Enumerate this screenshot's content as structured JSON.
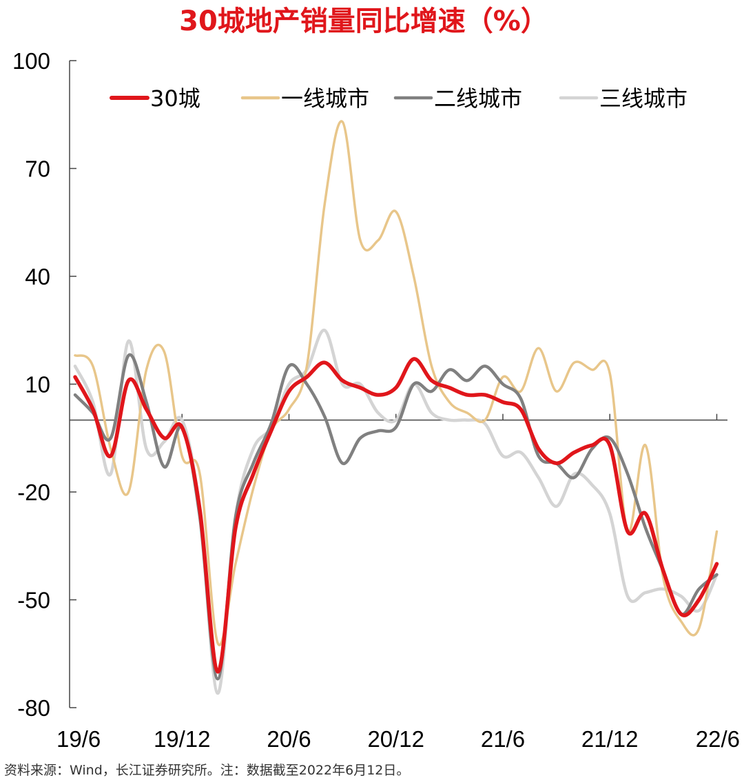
{
  "chart_data": {
    "type": "line",
    "title": "30城地产销量同比增速（%）",
    "source_note": "资料来源：Wind，长江证券研究所。注：数据截至2022年6月12日。",
    "ylim": [
      -80,
      100
    ],
    "yticks": [
      100,
      70,
      40,
      10,
      -20,
      -50,
      -80
    ],
    "x_tick_labels": [
      "19/6",
      "19/12",
      "20/6",
      "20/12",
      "21/6",
      "21/12",
      "22/6"
    ],
    "x_tick_positions": [
      0,
      6,
      12,
      18,
      24,
      30,
      36
    ],
    "xlim": [
      0,
      36.6
    ],
    "grid": false,
    "legend_position": "top",
    "series": [
      {
        "name": "30城",
        "color": "#e0161b",
        "width": 5.5,
        "points": [
          [
            0,
            12
          ],
          [
            1,
            3
          ],
          [
            2,
            -10
          ],
          [
            3,
            11
          ],
          [
            4,
            3
          ],
          [
            5,
            -5
          ],
          [
            6,
            -2
          ],
          [
            7,
            -25
          ],
          [
            8,
            -70
          ],
          [
            9,
            -30
          ],
          [
            10,
            -15
          ],
          [
            11,
            -3
          ],
          [
            12,
            8
          ],
          [
            13,
            12
          ],
          [
            14,
            16
          ],
          [
            15,
            11
          ],
          [
            16,
            9
          ],
          [
            17,
            7
          ],
          [
            18,
            9
          ],
          [
            19,
            17
          ],
          [
            20,
            11
          ],
          [
            21,
            9
          ],
          [
            22,
            7
          ],
          [
            23,
            7
          ],
          [
            24,
            5
          ],
          [
            25,
            3
          ],
          [
            26,
            -8
          ],
          [
            27,
            -12
          ],
          [
            28,
            -9
          ],
          [
            29,
            -7
          ],
          [
            30,
            -7
          ],
          [
            31,
            -31
          ],
          [
            32,
            -26
          ],
          [
            33,
            -42
          ],
          [
            34,
            -54
          ],
          [
            35,
            -50
          ],
          [
            36,
            -40
          ]
        ]
      },
      {
        "name": "一线城市",
        "color": "#e8c68a",
        "width": 3.5,
        "points": [
          [
            0,
            18
          ],
          [
            1,
            15
          ],
          [
            2,
            -8
          ],
          [
            3,
            -20
          ],
          [
            4,
            14
          ],
          [
            5,
            19
          ],
          [
            6,
            -10
          ],
          [
            7,
            -15
          ],
          [
            8,
            -62
          ],
          [
            9,
            -40
          ],
          [
            10,
            -19
          ],
          [
            11,
            -3
          ],
          [
            12,
            3
          ],
          [
            13,
            15
          ],
          [
            14,
            60
          ],
          [
            15,
            83
          ],
          [
            16,
            50
          ],
          [
            17,
            50
          ],
          [
            18,
            58
          ],
          [
            19,
            40
          ],
          [
            20,
            15
          ],
          [
            21,
            5
          ],
          [
            22,
            2
          ],
          [
            23,
            0
          ],
          [
            24,
            12
          ],
          [
            25,
            8
          ],
          [
            26,
            20
          ],
          [
            27,
            8
          ],
          [
            28,
            16
          ],
          [
            29,
            14
          ],
          [
            30,
            13
          ],
          [
            31,
            -31
          ],
          [
            32,
            -7
          ],
          [
            33,
            -44
          ],
          [
            34,
            -56
          ],
          [
            35,
            -58
          ],
          [
            36,
            -31
          ]
        ]
      },
      {
        "name": "二线城市",
        "color": "#808080",
        "width": 4.5,
        "points": [
          [
            0,
            7
          ],
          [
            1,
            2
          ],
          [
            2,
            -5
          ],
          [
            3,
            18
          ],
          [
            4,
            5
          ],
          [
            5,
            -13
          ],
          [
            6,
            -2
          ],
          [
            7,
            -27
          ],
          [
            8,
            -72
          ],
          [
            9,
            -27
          ],
          [
            10,
            -12
          ],
          [
            11,
            -1
          ],
          [
            12,
            15
          ],
          [
            13,
            10
          ],
          [
            14,
            1
          ],
          [
            15,
            -12
          ],
          [
            16,
            -5
          ],
          [
            17,
            -3
          ],
          [
            18,
            -2
          ],
          [
            19,
            10
          ],
          [
            20,
            8
          ],
          [
            21,
            14
          ],
          [
            22,
            11
          ],
          [
            23,
            15
          ],
          [
            24,
            10
          ],
          [
            25,
            6
          ],
          [
            26,
            -10
          ],
          [
            27,
            -12
          ],
          [
            28,
            -16
          ],
          [
            29,
            -8
          ],
          [
            30,
            -5
          ],
          [
            31,
            -15
          ],
          [
            32,
            -30
          ],
          [
            33,
            -42
          ],
          [
            34,
            -54
          ],
          [
            35,
            -47
          ],
          [
            36,
            -43
          ]
        ]
      },
      {
        "name": "三线城市",
        "color": "#d4d4d4",
        "width": 4.5,
        "points": [
          [
            0,
            15
          ],
          [
            1,
            5
          ],
          [
            2,
            -15
          ],
          [
            3,
            22
          ],
          [
            4,
            -8
          ],
          [
            5,
            -6
          ],
          [
            6,
            0
          ],
          [
            7,
            -25
          ],
          [
            8,
            -76
          ],
          [
            9,
            -27
          ],
          [
            10,
            -8
          ],
          [
            11,
            -2
          ],
          [
            12,
            10
          ],
          [
            13,
            14
          ],
          [
            14,
            25
          ],
          [
            15,
            10
          ],
          [
            16,
            10
          ],
          [
            17,
            2
          ],
          [
            18,
            0
          ],
          [
            19,
            10
          ],
          [
            20,
            2
          ],
          [
            21,
            0
          ],
          [
            22,
            0
          ],
          [
            23,
            -1
          ],
          [
            24,
            -10
          ],
          [
            25,
            -9
          ],
          [
            26,
            -16
          ],
          [
            27,
            -24
          ],
          [
            28,
            -15
          ],
          [
            29,
            -18
          ],
          [
            30,
            -26
          ],
          [
            31,
            -49
          ],
          [
            32,
            -48
          ],
          [
            33,
            -47
          ],
          [
            34,
            -49
          ],
          [
            35,
            -53
          ],
          [
            36,
            -43
          ]
        ]
      }
    ]
  }
}
